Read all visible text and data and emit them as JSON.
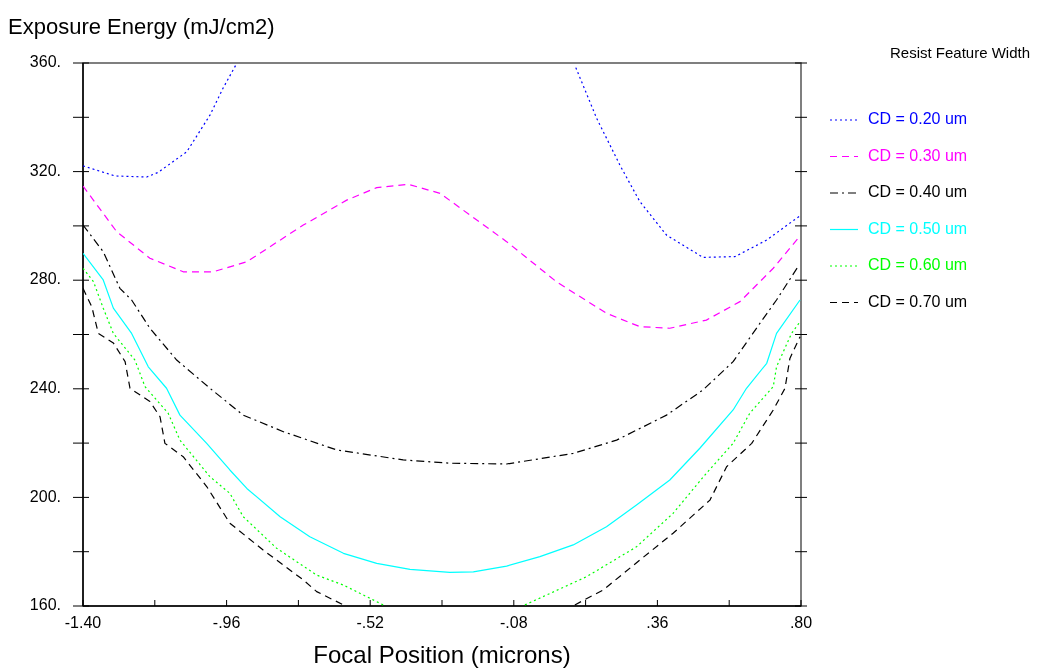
{
  "chart_data": {
    "type": "line",
    "ylabel": "Exposure Energy (mJ/cm2)",
    "xlabel": "Focal Position (microns)",
    "legend_title": "Resist Feature Width",
    "legend": "right",
    "grid": false,
    "marker": "none",
    "xlim": [
      -1.4,
      0.8
    ],
    "ylim": [
      160,
      360
    ],
    "xticks": [
      {
        "value": -1.4,
        "label": "-1.40"
      },
      {
        "value": -1.18,
        "label": null
      },
      {
        "value": -0.96,
        "label": "-.96"
      },
      {
        "value": -0.74,
        "label": null
      },
      {
        "value": -0.52,
        "label": "-.52"
      },
      {
        "value": -0.3,
        "label": null
      },
      {
        "value": -0.08,
        "label": "-.08"
      },
      {
        "value": 0.14,
        "label": null
      },
      {
        "value": 0.36,
        "label": ".36"
      },
      {
        "value": 0.58,
        "label": null
      },
      {
        "value": 0.8,
        "label": ".80"
      }
    ],
    "yticks": [
      {
        "value": 160,
        "label": "160."
      },
      {
        "value": 180,
        "label": null
      },
      {
        "value": 200,
        "label": "200."
      },
      {
        "value": 220,
        "label": null
      },
      {
        "value": 240,
        "label": "240."
      },
      {
        "value": 260,
        "label": null
      },
      {
        "value": 280,
        "label": "280."
      },
      {
        "value": 300,
        "label": null
      },
      {
        "value": 320,
        "label": "320."
      },
      {
        "value": 340,
        "label": null
      },
      {
        "value": 360,
        "label": "360."
      }
    ],
    "series": [
      {
        "name": "CD = 0.20 um",
        "color": "#0000ff",
        "line_style": "dotted",
        "x": [
          -1.4,
          -1.302,
          -1.205,
          -1.17,
          -1.082,
          -1.011,
          -0.971,
          -0.932,
          -0.4,
          0.11,
          0.174,
          0.245,
          0.306,
          0.388,
          0.5,
          0.598,
          0.695,
          0.8
        ],
        "values": [
          322.1,
          318.4,
          318.0,
          319.7,
          327.3,
          340.8,
          350.7,
          359.2,
          null,
          358.3,
          339.6,
          322.4,
          309.0,
          296.6,
          288.4,
          288.7,
          294.8,
          304.0
        ]
      },
      {
        "name": "CD = 0.30 um",
        "color": "#ff00ff",
        "line_style": "dashed",
        "x": [
          -1.4,
          -1.297,
          -1.195,
          -1.093,
          -1.001,
          -0.898,
          -0.725,
          -0.592,
          -0.5,
          -0.403,
          -0.306,
          -0.102,
          0.051,
          0.204,
          0.306,
          0.398,
          0.51,
          0.613,
          0.715,
          0.791
        ],
        "values": [
          314.7,
          297.9,
          288.1,
          283.1,
          283.1,
          286.8,
          300.3,
          309.5,
          314.1,
          315.3,
          312.0,
          294.2,
          279.4,
          267.8,
          262.9,
          262.3,
          265.3,
          272.1,
          284.4,
          295.4
        ]
      },
      {
        "name": "CD = 0.40 um",
        "color": "#000000",
        "line_style": "dashdot",
        "x": [
          -1.4,
          -1.338,
          -1.287,
          -1.251,
          -1.195,
          -1.113,
          -1.011,
          -0.909,
          -0.786,
          -0.623,
          -0.419,
          -0.276,
          -0.102,
          0.102,
          0.235,
          0.388,
          0.5,
          0.592,
          0.674,
          0.725,
          0.791
        ],
        "values": [
          300.3,
          290.5,
          277.0,
          272.7,
          262.3,
          250.6,
          240.2,
          230.3,
          224.2,
          217.5,
          213.8,
          212.6,
          212.3,
          216.2,
          221.1,
          230.3,
          239.6,
          250.0,
          264.1,
          272.7,
          285.0
        ]
      },
      {
        "name": "CD = 0.50 um",
        "color": "#00ffff",
        "line_style": "solid",
        "x": [
          -1.4,
          -1.338,
          -1.307,
          -1.251,
          -1.2,
          -1.144,
          -1.103,
          -1.021,
          -0.95,
          -0.898,
          -0.796,
          -0.705,
          -0.602,
          -0.5,
          -0.398,
          -0.276,
          -0.204,
          -0.102,
          0.0,
          0.102,
          0.204,
          0.296,
          0.398,
          0.49,
          0.592,
          0.633,
          0.695,
          0.725,
          0.797
        ],
        "values": [
          289.9,
          280.1,
          269.7,
          260.4,
          248.1,
          240.2,
          230.3,
          219.9,
          210.1,
          203.3,
          192.9,
          185.5,
          179.4,
          175.7,
          173.5,
          172.4,
          172.6,
          174.7,
          178.2,
          182.5,
          189.2,
          197.2,
          206.4,
          218.1,
          232.2,
          240.2,
          249.4,
          260.4,
          272.7
        ]
      },
      {
        "name": "CD = 0.60 um",
        "color": "#00ff00",
        "line_style": "dotted",
        "x": [
          -1.4,
          -1.368,
          -1.338,
          -1.307,
          -1.241,
          -1.21,
          -1.139,
          -1.103,
          -1.011,
          -0.95,
          -0.909,
          -0.807,
          -0.684,
          -0.602,
          -0.48,
          -0.2,
          -0.046,
          0.143,
          0.296,
          0.408,
          0.51,
          0.592,
          0.643,
          0.715,
          0.725,
          0.771,
          0.797
        ],
        "values": [
          284.4,
          279.5,
          269.7,
          260.4,
          250.6,
          240.8,
          231.0,
          221.1,
          207.6,
          201.5,
          192.9,
          181.3,
          171.4,
          167.7,
          160.4,
          null,
          160.4,
          170.8,
          181.8,
          194.1,
          208.9,
          219.9,
          231.0,
          240.8,
          248.1,
          260.4,
          264.7
        ]
      },
      {
        "name": "CD = 0.70 um",
        "color": "#000000",
        "line_style": "dashed",
        "x": [
          -1.4,
          -1.373,
          -1.353,
          -1.307,
          -1.271,
          -1.256,
          -1.195,
          -1.164,
          -1.149,
          -1.093,
          -1.021,
          -0.95,
          -0.848,
          -0.725,
          -0.684,
          -0.602,
          -0.2,
          0.107,
          0.194,
          0.306,
          0.408,
          0.521,
          0.572,
          0.649,
          0.715,
          0.751,
          0.766,
          0.797
        ],
        "values": [
          277.0,
          270.2,
          260.4,
          256.9,
          250.0,
          240.2,
          235.3,
          229.7,
          219.9,
          215.0,
          204.0,
          190.5,
          180.6,
          169.6,
          165.3,
          160.4,
          null,
          160.4,
          165.9,
          176.9,
          186.8,
          199.0,
          211.3,
          219.9,
          232.2,
          240.2,
          251.2,
          259.2
        ]
      }
    ]
  }
}
